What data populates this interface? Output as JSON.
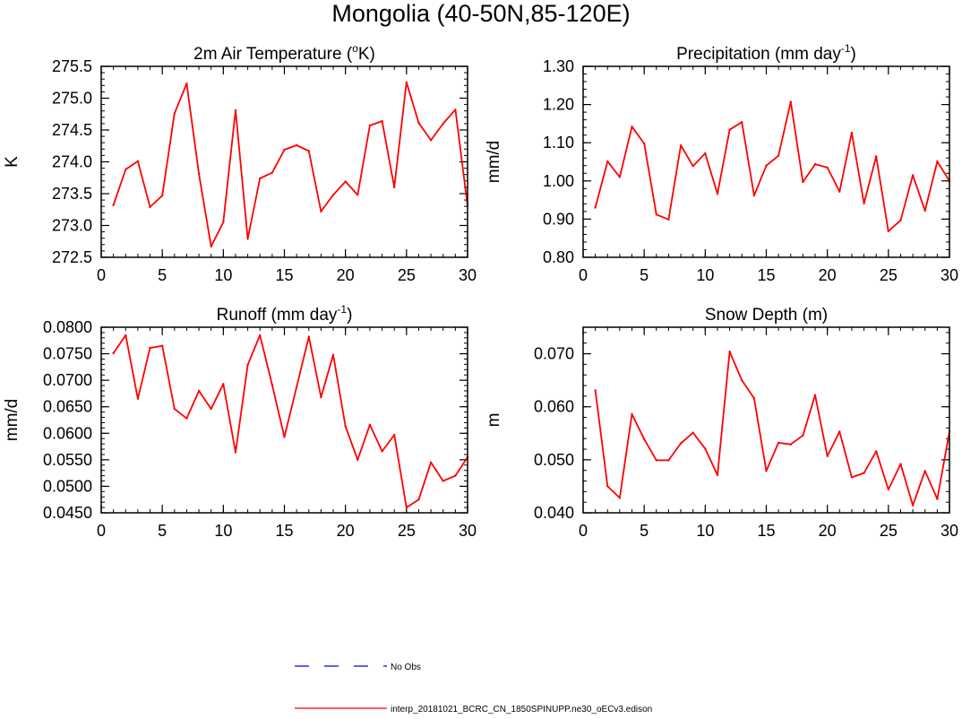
{
  "title": "Mongolia (40-50N,85-120E)",
  "colors": {
    "series": "#ff0000",
    "obs": "#0000ff",
    "axis": "#000000"
  },
  "legend": {
    "obs_label": "No Obs",
    "model_label": "interp_20181021_BCRC_CN_1850SPINUPP.ne30_oECv3.edison"
  },
  "chart_data": [
    {
      "id": "temp",
      "type": "line",
      "title": "2m Air Temperature (°K)",
      "title_parts": [
        "2m Air Temperature (",
        "o",
        "K)"
      ],
      "ylabel": "K",
      "xlim": [
        0,
        30
      ],
      "ylim": [
        272.5,
        275.5
      ],
      "xticks": [
        0,
        5,
        10,
        15,
        20,
        25,
        30
      ],
      "xtick_labels": [
        "0",
        "5",
        "10",
        "15",
        "20",
        "25",
        "30"
      ],
      "yticks": [
        272.5,
        273.0,
        273.5,
        274.0,
        274.5,
        275.0,
        275.5
      ],
      "ytick_labels": [
        "272.5",
        "273.0",
        "273.5",
        "274.0",
        "274.5",
        "275.0",
        "275.5"
      ],
      "y_minor": 0.1,
      "x": [
        1,
        2,
        3,
        4,
        5,
        6,
        7,
        8,
        9,
        10,
        11,
        12,
        13,
        14,
        15,
        16,
        17,
        18,
        19,
        20,
        21,
        22,
        23,
        24,
        25,
        26,
        27,
        28,
        29,
        30
      ],
      "values": [
        273.32,
        273.88,
        274.01,
        273.29,
        273.47,
        274.76,
        275.23,
        273.81,
        272.67,
        273.05,
        274.81,
        272.79,
        273.74,
        273.83,
        274.19,
        274.26,
        274.17,
        273.22,
        273.48,
        273.69,
        273.48,
        274.57,
        274.64,
        273.6,
        275.25,
        274.61,
        274.34,
        274.6,
        274.82,
        273.31
      ]
    },
    {
      "id": "precip",
      "type": "line",
      "title": "Precipitation (mm day⁻¹)",
      "title_parts": [
        "Precipitation (mm day",
        "-1",
        ")"
      ],
      "ylabel": "mm/d",
      "xlim": [
        0,
        30
      ],
      "ylim": [
        0.8,
        1.3
      ],
      "xticks": [
        0,
        5,
        10,
        15,
        20,
        25,
        30
      ],
      "xtick_labels": [
        "0",
        "5",
        "10",
        "15",
        "20",
        "25",
        "30"
      ],
      "yticks": [
        0.8,
        0.9,
        1.0,
        1.1,
        1.2,
        1.3
      ],
      "ytick_labels": [
        "0.80",
        "0.90",
        "1.00",
        "1.10",
        "1.20",
        "1.30"
      ],
      "y_minor": 0.02,
      "x": [
        1,
        2,
        3,
        4,
        5,
        6,
        7,
        8,
        9,
        10,
        11,
        12,
        13,
        14,
        15,
        16,
        17,
        18,
        19,
        20,
        21,
        22,
        23,
        24,
        25,
        26,
        27,
        28,
        29,
        30
      ],
      "values": [
        0.93,
        1.051,
        1.01,
        1.142,
        1.098,
        0.912,
        0.899,
        1.093,
        1.039,
        1.072,
        0.966,
        1.134,
        1.154,
        0.962,
        1.04,
        1.066,
        1.207,
        0.997,
        1.044,
        1.035,
        0.972,
        1.126,
        0.941,
        1.064,
        0.868,
        0.897,
        1.015,
        0.922,
        1.051,
        1.0
      ]
    },
    {
      "id": "runoff",
      "type": "line",
      "title": "Runoff (mm day⁻¹)",
      "title_parts": [
        "Runoff (mm day",
        "-1",
        ")"
      ],
      "ylabel": "mm/d",
      "xlim": [
        0,
        30
      ],
      "ylim": [
        0.045,
        0.08
      ],
      "xticks": [
        0,
        5,
        10,
        15,
        20,
        25,
        30
      ],
      "xtick_labels": [
        "0",
        "5",
        "10",
        "15",
        "20",
        "25",
        "30"
      ],
      "yticks": [
        0.045,
        0.05,
        0.055,
        0.06,
        0.065,
        0.07,
        0.075,
        0.08
      ],
      "ytick_labels": [
        "0.0450",
        "0.0500",
        "0.0550",
        "0.0600",
        "0.0650",
        "0.0700",
        "0.0750",
        "0.0800"
      ],
      "y_minor": 0.001,
      "x": [
        1,
        2,
        3,
        4,
        5,
        6,
        7,
        8,
        9,
        10,
        11,
        12,
        13,
        14,
        15,
        16,
        17,
        18,
        19,
        20,
        21,
        22,
        23,
        24,
        25,
        26,
        27,
        28,
        29,
        30
      ],
      "values": [
        0.0751,
        0.0785,
        0.0665,
        0.0761,
        0.0765,
        0.0646,
        0.0628,
        0.068,
        0.0646,
        0.0693,
        0.0564,
        0.0729,
        0.0785,
        0.0691,
        0.0593,
        0.0687,
        0.0782,
        0.0668,
        0.0748,
        0.0613,
        0.055,
        0.0616,
        0.0566,
        0.0597,
        0.046,
        0.0475,
        0.0545,
        0.051,
        0.052,
        0.0555
      ]
    },
    {
      "id": "snow",
      "type": "line",
      "title": "Snow Depth (m)",
      "title_parts": [
        "Snow Depth (m)",
        "",
        ""
      ],
      "ylabel": "m",
      "xlim": [
        0,
        30
      ],
      "ylim": [
        0.04,
        0.075
      ],
      "xticks": [
        0,
        5,
        10,
        15,
        20,
        25,
        30
      ],
      "xtick_labels": [
        "0",
        "5",
        "10",
        "15",
        "20",
        "25",
        "30"
      ],
      "yticks": [
        0.04,
        0.05,
        0.06,
        0.07
      ],
      "ytick_labels": [
        "0.040",
        "0.050",
        "0.060",
        "0.070"
      ],
      "y_minor": 0.002,
      "x": [
        1,
        2,
        3,
        4,
        5,
        6,
        7,
        8,
        9,
        10,
        11,
        12,
        13,
        14,
        15,
        16,
        17,
        18,
        19,
        20,
        21,
        22,
        23,
        24,
        25,
        26,
        27,
        28,
        29,
        30
      ],
      "values": [
        0.0631,
        0.045,
        0.0428,
        0.0586,
        0.0539,
        0.0499,
        0.0499,
        0.0531,
        0.0551,
        0.0521,
        0.0471,
        0.0704,
        0.065,
        0.0616,
        0.0479,
        0.0532,
        0.0529,
        0.0546,
        0.0622,
        0.0507,
        0.0553,
        0.0467,
        0.0475,
        0.0516,
        0.0444,
        0.0492,
        0.0414,
        0.0479,
        0.0426,
        0.0553
      ]
    }
  ]
}
